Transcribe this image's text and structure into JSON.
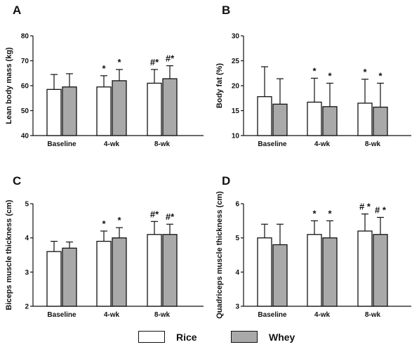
{
  "legend": {
    "rice": {
      "label": "Rice",
      "color": "#ffffff"
    },
    "whey": {
      "label": "Whey",
      "color": "#a9a9a9"
    }
  },
  "chart_data": [
    {
      "panel": "A",
      "type": "bar",
      "ylabel": "Lean body mass (kg)",
      "ylim": [
        40,
        80
      ],
      "yticks": [
        40,
        50,
        60,
        70,
        80
      ],
      "categories": [
        "Baseline",
        "4-wk",
        "8-wk"
      ],
      "series": [
        {
          "name": "Rice",
          "values": [
            58.5,
            59.5,
            61.0
          ],
          "errors": [
            6.0,
            4.5,
            5.5
          ]
        },
        {
          "name": "Whey",
          "values": [
            59.5,
            62.0,
            62.8
          ],
          "errors": [
            5.3,
            4.5,
            5.2
          ]
        }
      ],
      "annotations": [
        [
          "",
          "",
          "#*"
        ],
        [
          "",
          "*",
          "#*"
        ]
      ],
      "annotations_rice": [
        "",
        "*",
        "#*"
      ]
    },
    {
      "panel": "B",
      "type": "bar",
      "ylabel": "Body fat (%)",
      "ylim": [
        10,
        30
      ],
      "yticks": [
        10,
        15,
        20,
        25,
        30
      ],
      "categories": [
        "Baseline",
        "4-wk",
        "8-wk"
      ],
      "series": [
        {
          "name": "Rice",
          "values": [
            17.8,
            16.7,
            16.5
          ],
          "errors": [
            6.0,
            4.8,
            4.8
          ]
        },
        {
          "name": "Whey",
          "values": [
            16.3,
            15.8,
            15.7
          ],
          "errors": [
            5.1,
            4.7,
            4.8
          ]
        }
      ],
      "annotations_rice": [
        "",
        "*",
        "*"
      ],
      "annotations_whey": [
        "",
        "*",
        "*"
      ]
    },
    {
      "panel": "C",
      "type": "bar",
      "ylabel": "Biceps muscle thickness (cm)",
      "ylim": [
        2,
        5
      ],
      "yticks": [
        2,
        3,
        4,
        5
      ],
      "categories": [
        "Baseline",
        "4-wk",
        "8-wk"
      ],
      "series": [
        {
          "name": "Rice",
          "values": [
            3.6,
            3.9,
            4.1
          ],
          "errors": [
            0.3,
            0.3,
            0.38
          ]
        },
        {
          "name": "Whey",
          "values": [
            3.7,
            4.0,
            4.1
          ],
          "errors": [
            0.18,
            0.3,
            0.3
          ]
        }
      ],
      "annotations_rice": [
        "",
        "*",
        "#*"
      ],
      "annotations_whey": [
        "",
        "*",
        "#*"
      ]
    },
    {
      "panel": "D",
      "type": "bar",
      "ylabel": "Quadriceps muscle thickness (cm)",
      "ylim": [
        3,
        6
      ],
      "yticks": [
        3,
        4,
        5,
        6
      ],
      "categories": [
        "Baseline",
        "4-wk",
        "8-wk"
      ],
      "series": [
        {
          "name": "Rice",
          "values": [
            5.0,
            5.1,
            5.2
          ],
          "errors": [
            0.4,
            0.4,
            0.5
          ]
        },
        {
          "name": "Whey",
          "values": [
            4.8,
            5.0,
            5.1
          ],
          "errors": [
            0.6,
            0.5,
            0.5
          ]
        }
      ],
      "annotations_rice": [
        "",
        "*",
        "# *"
      ],
      "annotations_whey": [
        "",
        "*",
        "# *"
      ]
    }
  ]
}
